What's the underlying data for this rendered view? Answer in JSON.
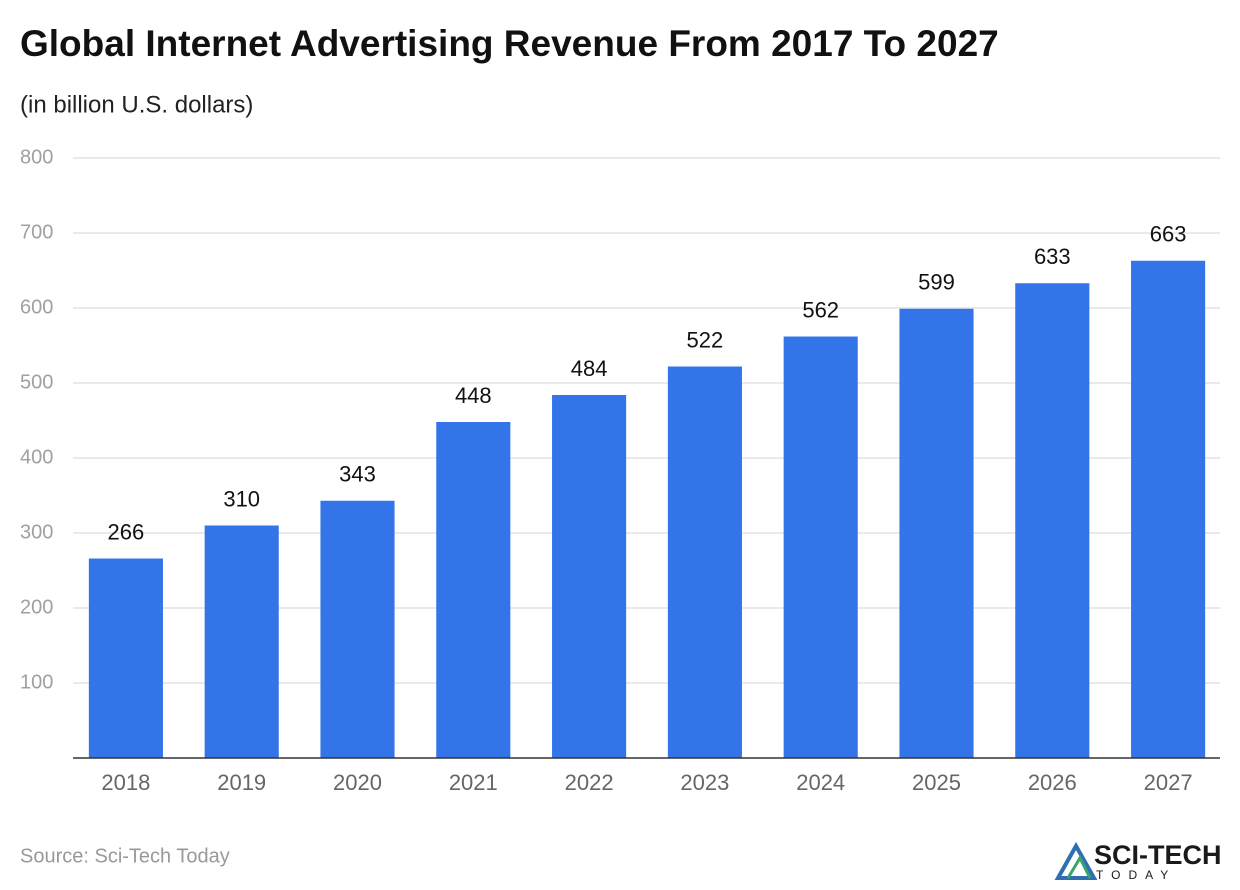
{
  "chart_data": {
    "type": "bar",
    "title": "Global Internet Advertising Revenue From 2017 To 2027",
    "subtitle": "(in billion U.S. dollars)",
    "categories": [
      "2018",
      "2019",
      "2020",
      "2021",
      "2022",
      "2023",
      "2024",
      "2025",
      "2026",
      "2027"
    ],
    "values": [
      266,
      310,
      343,
      448,
      484,
      522,
      562,
      599,
      633,
      663
    ],
    "color": "#3375e8",
    "ylim": [
      0,
      800
    ],
    "yticks": [
      100,
      200,
      300,
      400,
      500,
      600,
      700,
      800
    ],
    "grid": true,
    "source": "Source: Sci-Tech Today",
    "logo": {
      "name": "SCI-TECH",
      "tagline": "TODAY"
    }
  }
}
